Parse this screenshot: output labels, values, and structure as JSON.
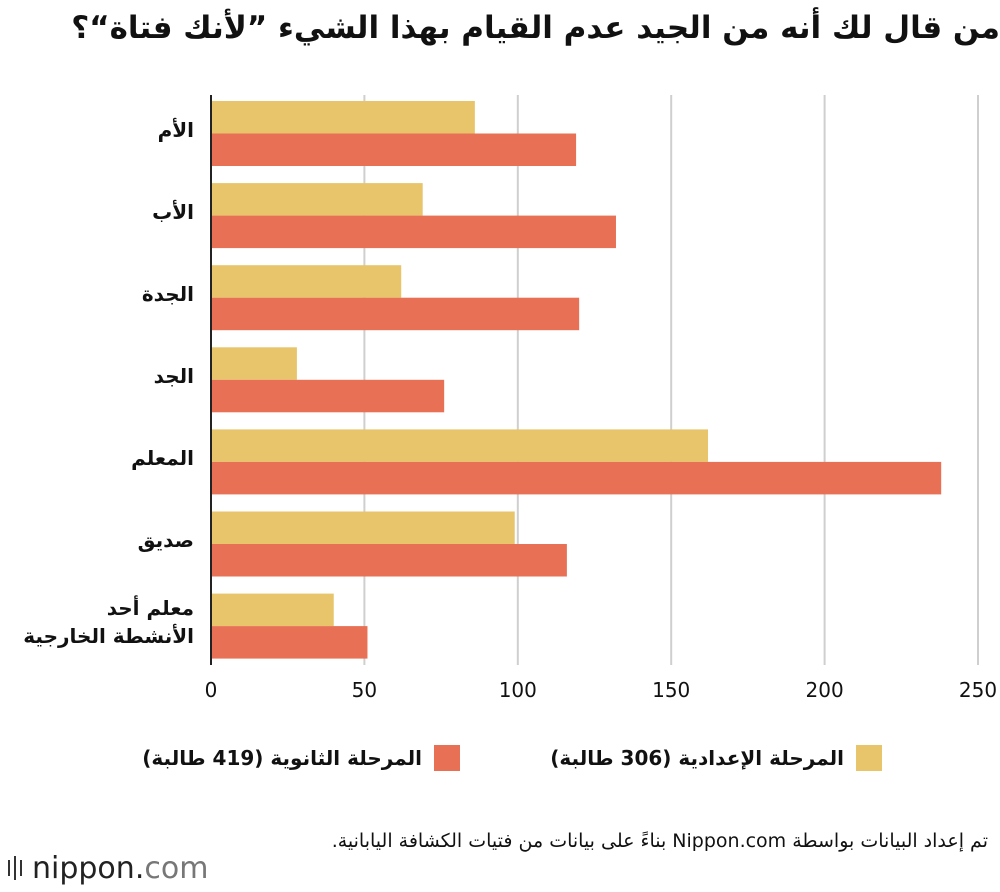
{
  "chart_data": {
    "type": "bar",
    "orientation": "horizontal",
    "title": "من قال لك أنه من الجيد عدم القيام بهذا الشيء ”لأنك فتاة“؟",
    "categories": [
      "الأم",
      "الأب",
      "الجدة",
      "الجد",
      "المعلم",
      "صديق",
      "معلم أحد\nالأنشطة الخارجية"
    ],
    "series": [
      {
        "name": "المرحلة الإعدادية (306 طالبة)",
        "color": "#e8c46a",
        "values": [
          86,
          69,
          62,
          28,
          162,
          99,
          40
        ]
      },
      {
        "name": "المرحلة الثانوية (419 طالبة)",
        "color": "#e87155",
        "values": [
          119,
          132,
          120,
          76,
          238,
          116,
          51
        ]
      }
    ],
    "xlim": [
      0,
      250
    ],
    "x_ticks": [
      "0",
      "50",
      "100",
      "150",
      "200",
      "250"
    ],
    "grid": true,
    "legend_position": "bottom"
  },
  "credit": "تم إعداد البيانات بواسطة Nippon.com بناءً على بيانات من فتيات الكشافة اليابانية.",
  "logo": {
    "name": "nippon",
    "dot": ".",
    "tld": "com"
  }
}
